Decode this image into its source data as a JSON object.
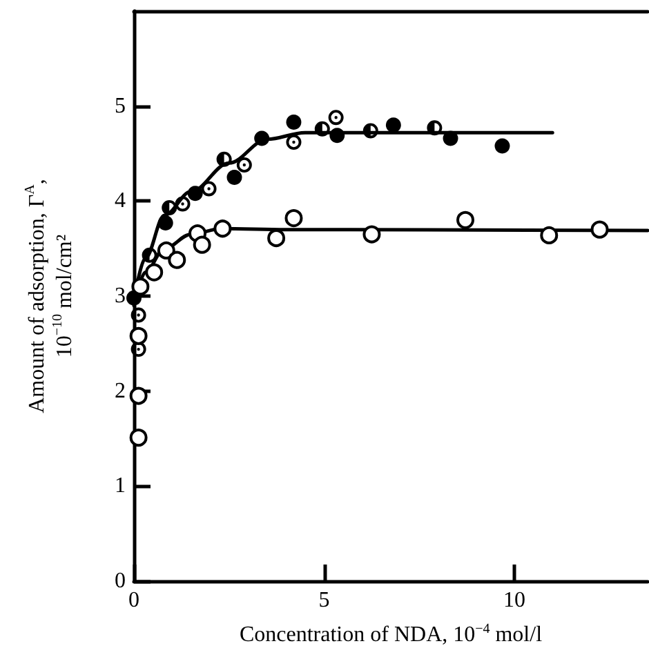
{
  "chart_data": {
    "type": "scatter",
    "xlabel": "Concentration of NDA, 10$^{−4}$ mol/l",
    "ylabel": "Amount of adsorption, Γ$^{A}$,\n10$^{−10}$ mol/cm²",
    "xlim": [
      0,
      13.5
    ],
    "ylim": [
      0,
      6
    ],
    "xticks": [
      0,
      5,
      10
    ],
    "yticks": [
      0,
      1,
      2,
      3,
      4,
      5
    ],
    "series": [
      {
        "type": "line",
        "marker": "none",
        "line_style": "solid",
        "color": "#000000",
        "x": [
          0,
          0.3,
          0.8,
          1.5,
          2.5,
          3.5,
          4.5,
          6,
          11
        ],
        "values": [
          2.95,
          3.4,
          3.85,
          4.1,
          4.4,
          4.65,
          4.72,
          4.72,
          4.72
        ]
      },
      {
        "type": "line",
        "marker": "none",
        "line_style": "solid",
        "color": "#000000",
        "x": [
          0,
          0.3,
          0.8,
          1.5,
          2.3,
          4,
          13.5
        ],
        "values": [
          2.9,
          3.25,
          3.5,
          3.65,
          3.71,
          3.7,
          3.69
        ]
      },
      {
        "marker": "circle",
        "color": "#000000",
        "x": [
          0,
          0.83,
          1.61,
          2.64,
          3.36,
          4.2,
          5.34,
          6.82,
          8.32,
          9.68
        ],
        "values": [
          2.98,
          3.77,
          4.08,
          4.25,
          4.66,
          4.83,
          4.69,
          4.8,
          4.66,
          4.58
        ]
      },
      {
        "marker": "circle-half",
        "color": "#000000",
        "x": [
          0.41,
          0.93,
          2.37,
          4.95,
          6.22,
          7.9
        ],
        "values": [
          3.43,
          3.93,
          4.44,
          4.76,
          4.74,
          4.77
        ]
      },
      {
        "marker": "circle-dot",
        "color": "#000000",
        "x": [
          0.12,
          0.12,
          1.28,
          1.97,
          2.9,
          4.2,
          5.31
        ],
        "values": [
          2.44,
          2.8,
          3.97,
          4.13,
          4.38,
          4.62,
          4.88
        ]
      },
      {
        "marker": "circle-open",
        "color": "#000000",
        "x": [
          0.12,
          0.12,
          0.12,
          0.17,
          0.53,
          0.85,
          1.13,
          1.67,
          1.79,
          2.33,
          3.74,
          4.2,
          6.25,
          8.71,
          10.91,
          12.24
        ],
        "values": [
          1.51,
          1.95,
          2.58,
          3.1,
          3.25,
          3.48,
          3.38,
          3.66,
          3.54,
          3.71,
          3.61,
          3.82,
          3.65,
          3.8,
          3.64,
          3.7
        ]
      }
    ]
  }
}
